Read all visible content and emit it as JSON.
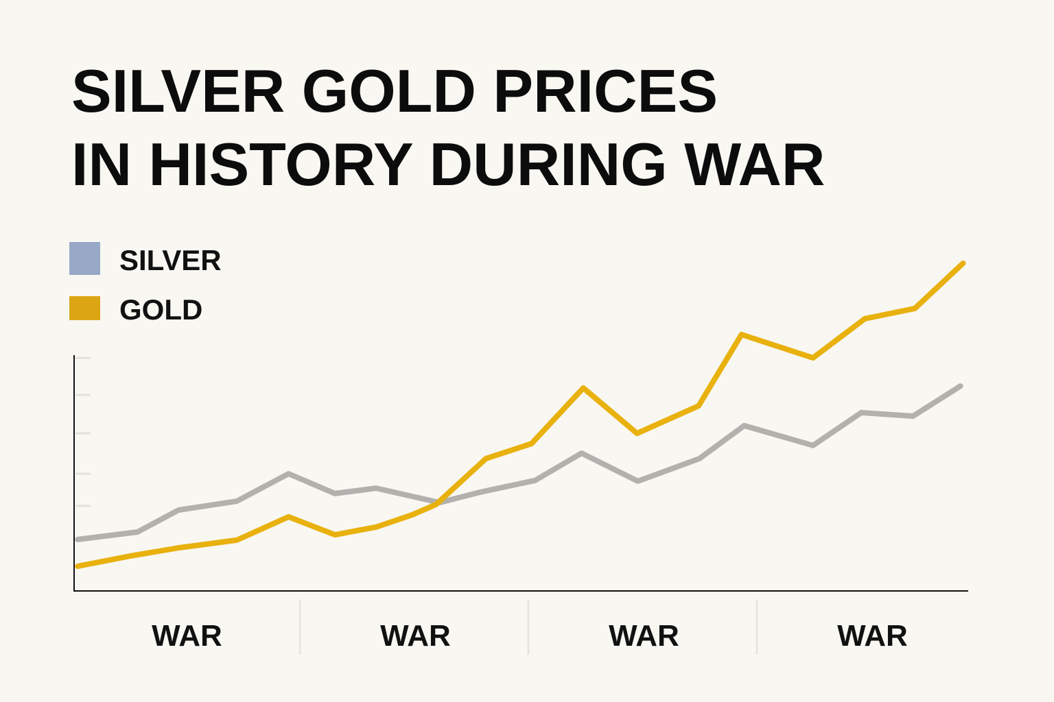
{
  "chart_data": {
    "type": "line",
    "title": "SILVER GOLD PRICES IN HISTORY DURING WAR",
    "title_lines": [
      "SILVER GOLD PRICES",
      "IN HISTORY DURING WAR"
    ],
    "xlabel": "",
    "ylabel": "",
    "categories": [
      "WAR",
      "WAR",
      "WAR",
      "WAR"
    ],
    "xlim": [
      0,
      100
    ],
    "ylim": [
      0,
      150
    ],
    "y_ticks": [
      36.5,
      50.3,
      67.6,
      84.1,
      100
    ],
    "grid": false,
    "legend_placement": "top-left",
    "legend": [
      {
        "name": "SILVER",
        "color": "#97a9c6"
      },
      {
        "name": "GOLD",
        "color": "#dca514"
      }
    ],
    "series": [
      {
        "name": "SILVER",
        "color": "#b3b1ad",
        "x": [
          0.4,
          7.1,
          11.7,
          18.2,
          24,
          29.2,
          33.8,
          40.9,
          45.5,
          51.6,
          56.8,
          63.1,
          70,
          75,
          82.7,
          88.1,
          93.9,
          99.2
        ],
        "y": [
          22.1,
          25.3,
          34.7,
          38.5,
          50.3,
          41.8,
          44.1,
          37.9,
          42.4,
          47.4,
          59.1,
          47.1,
          56.8,
          70.9,
          62.4,
          76.5,
          75,
          87.9
        ]
      },
      {
        "name": "GOLD",
        "color": "#e8b10e",
        "x": [
          0.4,
          6.3,
          11.7,
          18.2,
          24,
          29.2,
          33.8,
          37.8,
          40.5,
          46.1,
          51.2,
          57,
          63,
          69.9,
          74.7,
          82.7,
          88.5,
          94.1,
          99.5
        ],
        "y": [
          10.6,
          15,
          18.5,
          21.8,
          31.8,
          24.1,
          27.4,
          32.6,
          37.1,
          56.8,
          63.2,
          87.1,
          67.6,
          79.4,
          110,
          100,
          116.8,
          121.2,
          140.6
        ]
      }
    ]
  }
}
